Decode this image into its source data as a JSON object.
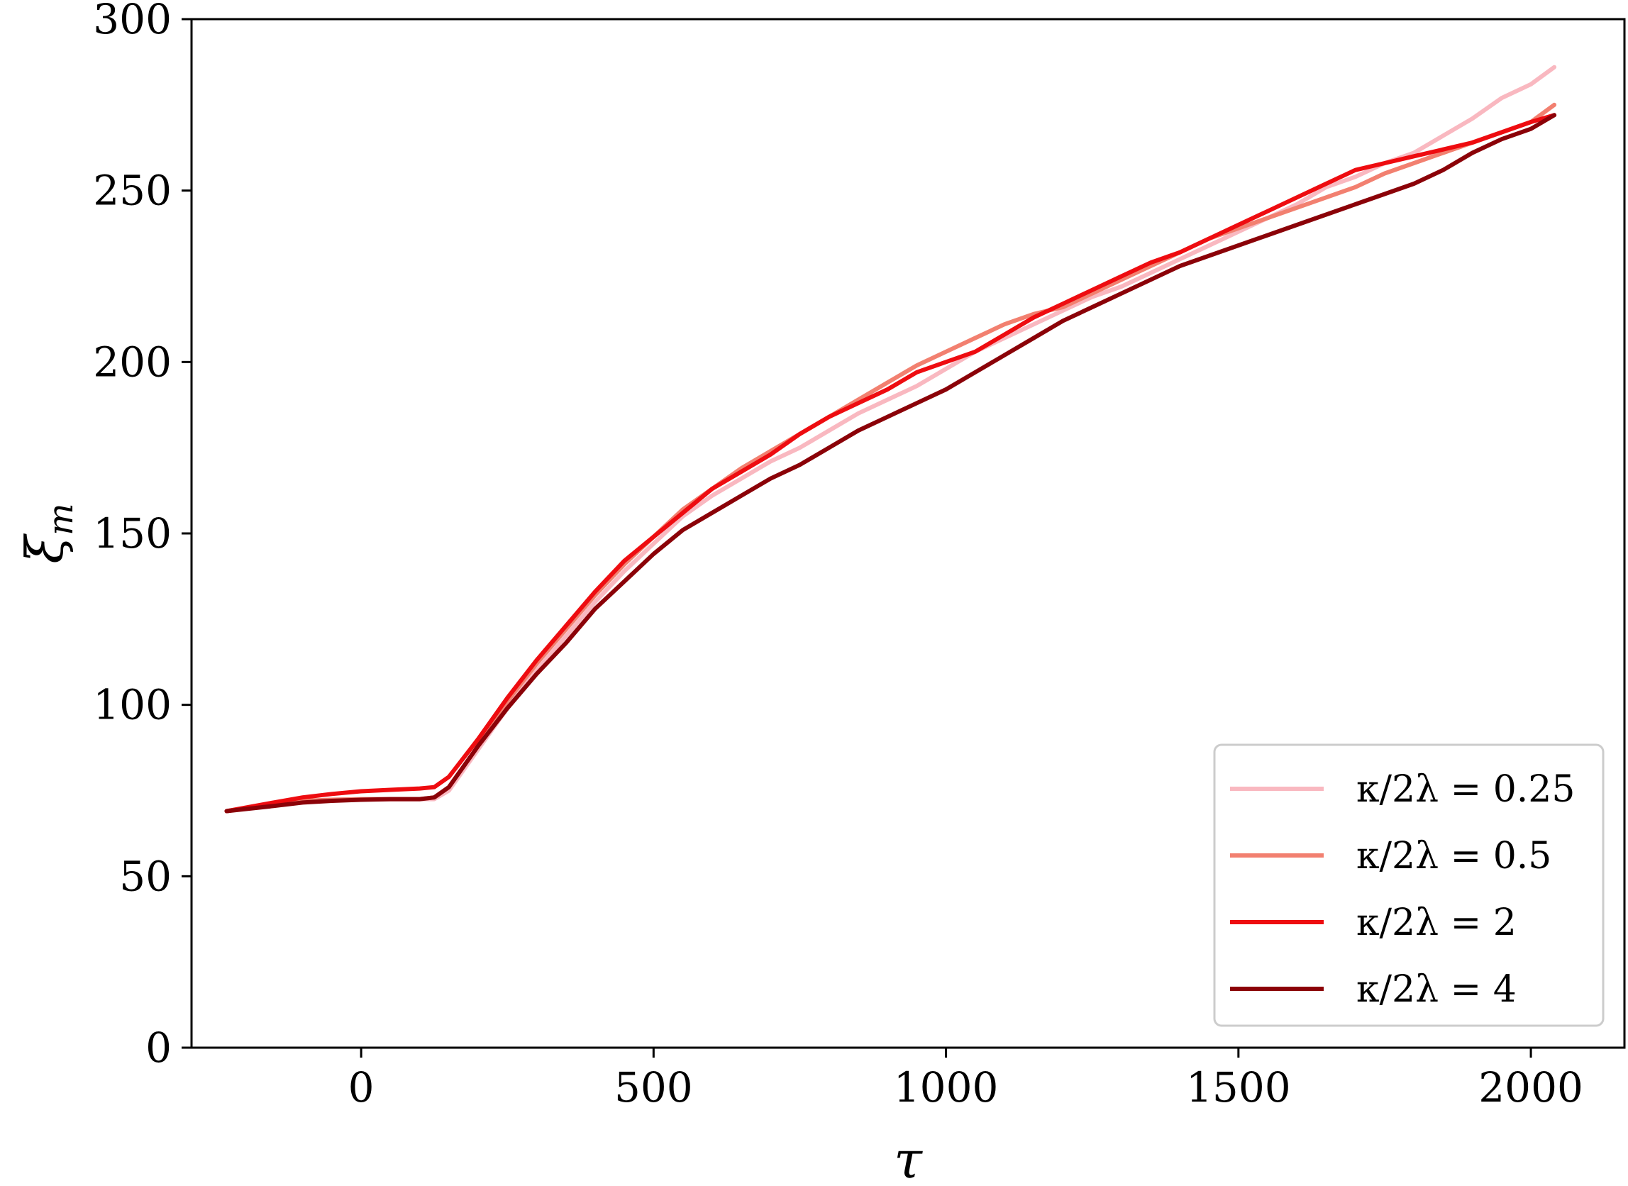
{
  "chart_data": {
    "type": "line",
    "title": "",
    "xlabel": "τ",
    "ylabel": "ξ_m",
    "xlim": [
      -290,
      2160
    ],
    "ylim": [
      0,
      300
    ],
    "xticks": [
      0,
      500,
      1000,
      1500,
      2000
    ],
    "xtick_labels": [
      "0",
      "500",
      "1000",
      "1500",
      "2000"
    ],
    "yticks": [
      0,
      50,
      100,
      150,
      200,
      250,
      300
    ],
    "ytick_labels": [
      "0",
      "50",
      "100",
      "150",
      "200",
      "250",
      "300"
    ],
    "grid": false,
    "legend_position": "lower right",
    "series": [
      {
        "name": "κ/2λ = 0.25",
        "legend_label": "κ/2λ = 0.25",
        "color": "#f9b8c0",
        "x": [
          -230,
          -150,
          -100,
          -50,
          0,
          50,
          100,
          125,
          150,
          200,
          250,
          300,
          350,
          400,
          450,
          500,
          550,
          600,
          650,
          700,
          750,
          800,
          850,
          900,
          950,
          1000,
          1050,
          1100,
          1150,
          1200,
          1250,
          1300,
          1350,
          1400,
          1450,
          1500,
          1550,
          1600,
          1650,
          1700,
          1750,
          1800,
          1850,
          1900,
          1950,
          2000,
          2040
        ],
        "y": [
          69,
          71,
          72,
          72.3,
          72.5,
          72.5,
          72.5,
          72.5,
          75,
          87,
          99,
          110,
          120,
          130,
          139,
          147,
          155,
          161,
          166,
          171,
          175,
          180,
          185,
          189,
          193,
          198,
          203,
          207,
          211,
          215,
          219,
          222,
          226,
          230,
          234,
          238,
          242,
          246,
          251,
          254,
          258,
          261,
          266,
          271,
          277,
          281,
          286
        ]
      },
      {
        "name": "κ/2λ = 0.5",
        "legend_label": "κ/2λ = 0.5",
        "color": "#f28070",
        "x": [
          -230,
          -150,
          -100,
          -50,
          0,
          50,
          100,
          125,
          150,
          200,
          250,
          300,
          350,
          400,
          450,
          500,
          550,
          600,
          650,
          700,
          750,
          800,
          850,
          900,
          950,
          1000,
          1050,
          1100,
          1150,
          1200,
          1250,
          1300,
          1350,
          1400,
          1450,
          1500,
          1550,
          1600,
          1650,
          1700,
          1750,
          1800,
          1850,
          1900,
          1950,
          2000,
          2040
        ],
        "y": [
          69,
          71,
          72,
          72.3,
          72.5,
          72.5,
          72.5,
          73,
          76,
          88,
          101,
          112,
          122,
          132,
          141,
          149,
          157,
          163,
          169,
          174,
          179,
          184,
          189,
          194,
          199,
          203,
          207,
          211,
          214,
          216,
          220,
          224,
          228,
          232,
          236,
          239,
          242,
          245,
          248,
          251,
          255,
          258,
          261,
          264,
          267,
          270,
          275
        ]
      },
      {
        "name": "κ/2λ = 2",
        "legend_label": "κ/2λ = 2",
        "color": "#ee0c10",
        "x": [
          -230,
          -150,
          -100,
          -50,
          0,
          50,
          100,
          125,
          150,
          200,
          250,
          300,
          350,
          400,
          450,
          500,
          550,
          600,
          650,
          700,
          750,
          800,
          850,
          900,
          950,
          1000,
          1050,
          1100,
          1150,
          1200,
          1250,
          1300,
          1350,
          1400,
          1450,
          1500,
          1550,
          1600,
          1650,
          1700,
          1750,
          1800,
          1850,
          1900,
          1950,
          2000,
          2040
        ],
        "y": [
          69,
          71.5,
          73,
          74,
          74.8,
          75.2,
          75.6,
          76,
          79,
          90,
          102,
          113,
          123,
          133,
          142,
          149,
          156,
          163,
          168,
          173,
          179,
          184,
          188,
          192,
          197,
          200,
          203,
          208,
          213,
          217,
          221,
          225,
          229,
          232,
          236,
          240,
          244,
          248,
          252,
          256,
          258,
          260,
          262,
          264,
          267,
          270,
          272
        ]
      },
      {
        "name": "κ/2λ = 4",
        "legend_label": "κ/2λ = 4",
        "color": "#8b0208",
        "x": [
          -230,
          -150,
          -100,
          -50,
          0,
          50,
          100,
          125,
          150,
          200,
          250,
          300,
          350,
          400,
          450,
          500,
          550,
          600,
          650,
          700,
          750,
          800,
          850,
          900,
          950,
          1000,
          1050,
          1100,
          1150,
          1200,
          1250,
          1300,
          1350,
          1400,
          1450,
          1500,
          1550,
          1600,
          1650,
          1700,
          1750,
          1800,
          1850,
          1900,
          1950,
          2000,
          2040
        ],
        "y": [
          69,
          70.5,
          71.5,
          72,
          72.3,
          72.5,
          72.5,
          73,
          76,
          88,
          99,
          109,
          118,
          128,
          136,
          144,
          151,
          156,
          161,
          166,
          170,
          175,
          180,
          184,
          188,
          192,
          197,
          202,
          207,
          212,
          216,
          220,
          224,
          228,
          231,
          234,
          237,
          240,
          243,
          246,
          249,
          252,
          256,
          261,
          265,
          268,
          272
        ]
      }
    ]
  }
}
